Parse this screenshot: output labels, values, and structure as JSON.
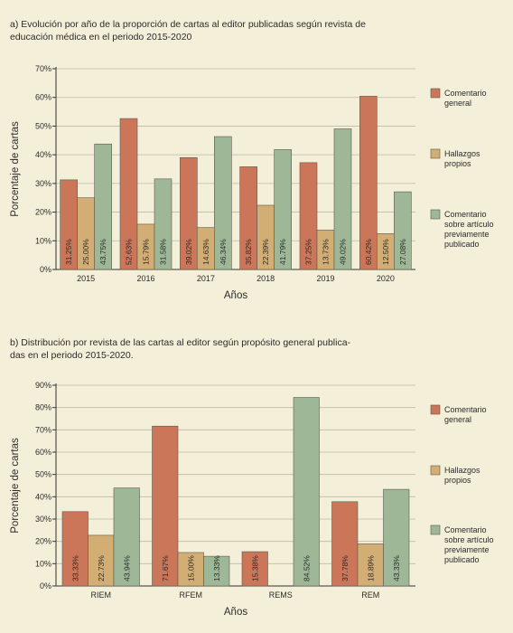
{
  "chart_data": [
    {
      "type": "bar",
      "title": "a) Evolución por año de la proporción de cartas al editor publicadas según revista de educación médica en el periodo 2015-2020",
      "xlabel": "Años",
      "ylabel": "Porcentaje de cartas",
      "ylim": [
        0,
        70
      ],
      "yticks": [
        "0%",
        "10%",
        "20%",
        "30%",
        "40%",
        "50%",
        "60%",
        "70%"
      ],
      "grid": true,
      "legend_position": "right",
      "categories": [
        "2015",
        "2016",
        "2017",
        "2018",
        "2019",
        "2020"
      ],
      "series": [
        {
          "name": "Comentario general",
          "color": "#cb7658",
          "values": [
            31.25,
            52.63,
            39.02,
            35.82,
            37.25,
            60.42
          ],
          "labels": [
            "31.25%",
            "52.63%",
            "39.02%",
            "35.82%",
            "37.25%",
            "60.42%"
          ]
        },
        {
          "name": "Hallazgos propios",
          "color": "#d2ad74",
          "values": [
            25.0,
            15.79,
            14.63,
            22.39,
            13.73,
            12.5
          ],
          "labels": [
            "25.00%",
            "15.79%",
            "14.63%",
            "22.39%",
            "13.73%",
            "12.50%"
          ]
        },
        {
          "name": "Comentario sobre artículo previamente publicado",
          "color": "#9db797",
          "values": [
            43.75,
            31.58,
            46.34,
            41.79,
            49.02,
            27.08
          ],
          "labels": [
            "43.75%",
            "31.58%",
            "46.34%",
            "41.79%",
            "49.02%",
            "27.08%"
          ]
        }
      ],
      "legend_lines": [
        [
          "Comentario",
          "general"
        ],
        [
          "Hallazgos",
          "propios"
        ],
        [
          "Comentario",
          "sobre artículo",
          "previamente",
          "publicado"
        ]
      ]
    },
    {
      "type": "bar",
      "title": "b) Distribución por revista de las cartas al editor según propósito general publicadas en el periodo 2015-2020.",
      "title_lines": [
        "b) Distribución por revista de las cartas al editor según propósito general publica-",
        "das en el periodo 2015-2020."
      ],
      "xlabel": "Años",
      "ylabel": "Porcentaje de cartas",
      "ylim": [
        0,
        90
      ],
      "yticks": [
        "0%",
        "10%",
        "20%",
        "30%",
        "40%",
        "50%",
        "60%",
        "70%",
        "80%",
        "90%"
      ],
      "grid": true,
      "legend_position": "right",
      "categories": [
        "RIEM",
        "RFEM",
        "REMS",
        "REM"
      ],
      "series": [
        {
          "name": "Comentario general",
          "color": "#cb7658",
          "values": [
            33.33,
            71.67,
            15.38,
            37.78
          ],
          "labels": [
            "33.33%",
            "71.67%",
            "15.38%",
            "37.78%"
          ]
        },
        {
          "name": "Hallazgos propios",
          "color": "#d2ad74",
          "values": [
            22.73,
            15.0,
            0,
            18.89
          ],
          "labels": [
            "22.73%",
            "15.00%",
            "",
            "18.89%"
          ]
        },
        {
          "name": "Comentario sobre artículo previamente publicado",
          "color": "#9db797",
          "values": [
            43.94,
            13.33,
            84.52,
            43.33
          ],
          "labels": [
            "43.94%",
            "13.33%",
            "84.52%",
            "43.33%"
          ]
        }
      ],
      "legend_lines": [
        [
          "Comentario",
          "general"
        ],
        [
          "Hallazgos",
          "propios"
        ],
        [
          "Comentario",
          "sobre artículo",
          "previamente",
          "publicado"
        ]
      ]
    }
  ]
}
